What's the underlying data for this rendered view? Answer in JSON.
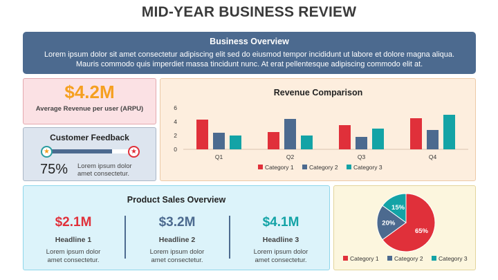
{
  "title": "MID-YEAR BUSINESS REVIEW",
  "overview": {
    "title": "Business Overview",
    "text": "Lorem ipsum dolor sit amet consectetur adipiscing elit sed do eiusmod tempor incididunt ut labore et dolore magna aliqua. Mauris commodo quis imperdiet massa tincidunt nunc. At erat pellentesque adipiscing commodo elit at."
  },
  "arpu": {
    "value": "$4.2M",
    "label": "Average Revenue per user (ARPU)",
    "color": "#f5a020"
  },
  "feedback": {
    "title": "Customer Feedback",
    "percent_text": "75%",
    "level": 0.75,
    "text_line1": "Lorem ipsum dolor",
    "text_line2": "amet consectetur.",
    "left_icon": "star-icon",
    "right_icon": "star-icon"
  },
  "product_sales": {
    "title": "Product Sales Overview",
    "items": [
      {
        "value": "$2.1M",
        "headline": "Headline 1",
        "line1": "Lorem ipsum dolor",
        "line2": "amet consectetur.",
        "color": "#e0303a"
      },
      {
        "value": "$3.2M",
        "headline": "Headline 2",
        "line1": "Lorem ipsum dolor",
        "line2": "amet consectetur.",
        "color": "#4c6a8f"
      },
      {
        "value": "$4.1M",
        "headline": "Headline 3",
        "line1": "Lorem ipsum dolor",
        "line2": "amet consectetur.",
        "color": "#13a3a6"
      }
    ]
  },
  "colors": {
    "category_1": "#e0303a",
    "category_2": "#4c6a8f",
    "category_3": "#13a3a6"
  },
  "chart_data": [
    {
      "type": "bar",
      "title": "Revenue Comparison",
      "categories": [
        "Q1",
        "Q2",
        "Q3",
        "Q4"
      ],
      "series": [
        {
          "name": "Category 1",
          "values": [
            4.3,
            2.5,
            3.5,
            4.5
          ],
          "color": "#e0303a"
        },
        {
          "name": "Category 2",
          "values": [
            2.4,
            4.4,
            1.8,
            2.8
          ],
          "color": "#4c6a8f"
        },
        {
          "name": "Category 3",
          "values": [
            2.0,
            2.0,
            3.0,
            5.0
          ],
          "color": "#13a3a6"
        }
      ],
      "yticks": [
        "0",
        "2",
        "4",
        "6"
      ],
      "ylim": [
        0,
        6
      ],
      "grid": false,
      "legend": "bottom"
    },
    {
      "type": "pie",
      "labels": [
        "Category 1",
        "Category 2",
        "Category 3"
      ],
      "values": [
        65,
        20,
        15
      ],
      "value_labels": [
        "65%",
        "20%",
        "15%"
      ],
      "colors": [
        "#e0303a",
        "#4c6a8f",
        "#13a3a6"
      ],
      "legend": "bottom"
    }
  ]
}
